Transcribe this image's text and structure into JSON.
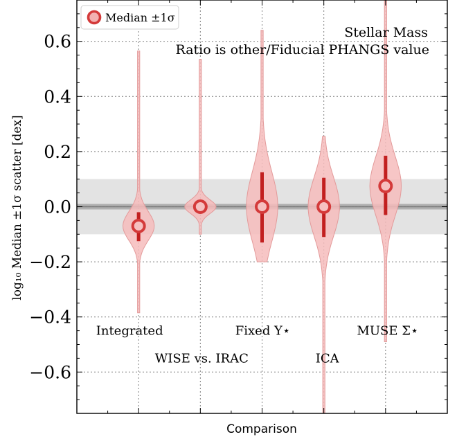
{
  "chart_data": {
    "type": "violin",
    "title": "Stellar Mass",
    "subtitle": "Ratio is other/Fiducial PHANGS value",
    "xlabel": "Comparison",
    "ylabel": "log₁₀ Median ±1σ scatter [dex]",
    "ylim": [
      -0.75,
      0.75
    ],
    "yticks": [
      -0.6,
      -0.4,
      -0.2,
      0.0,
      0.2,
      0.4,
      0.6
    ],
    "ytick_labels": [
      "−0.6",
      "−0.4",
      "−0.2",
      "0.0",
      "0.2",
      "0.4",
      "0.6"
    ],
    "grid": true,
    "legend": {
      "position": "top-left",
      "label": "Median ±1σ"
    },
    "reference_line": 0.0,
    "reference_band_inner": [
      -0.01,
      0.01
    ],
    "reference_band_outer": [
      -0.1,
      0.1
    ],
    "colors": {
      "violin_fill": "#f6bcbc",
      "violin_edge": "#e39a9a",
      "median": "#d43a3a",
      "errorbar": "#c21f1f",
      "band": "#d9d9d9",
      "band_inner": "#9a9a9a"
    },
    "series": [
      {
        "name": "Integrated",
        "median": -0.07,
        "err_low": -0.125,
        "err_high": -0.02,
        "min": -0.385,
        "max": 0.565,
        "label_y": -0.45
      },
      {
        "name": "WISE vs. IRAC",
        "median": 0.0,
        "err_low": -0.02,
        "err_high": 0.02,
        "min": -0.1,
        "max": 0.535,
        "label_y": -0.55
      },
      {
        "name": "Fixed Υ⋆",
        "median": 0.0,
        "err_low": -0.13,
        "err_high": 0.125,
        "min": -0.2,
        "max": 0.64,
        "label_y": -0.45
      },
      {
        "name": "ICA",
        "median": 0.0,
        "err_low": -0.11,
        "err_high": 0.105,
        "min": -0.75,
        "max": 0.255,
        "label_y": -0.55
      },
      {
        "name": "MUSE Σ⋆",
        "median": 0.075,
        "err_low": -0.03,
        "err_high": 0.185,
        "min": -0.49,
        "max": 0.75,
        "label_y": -0.45
      }
    ]
  }
}
